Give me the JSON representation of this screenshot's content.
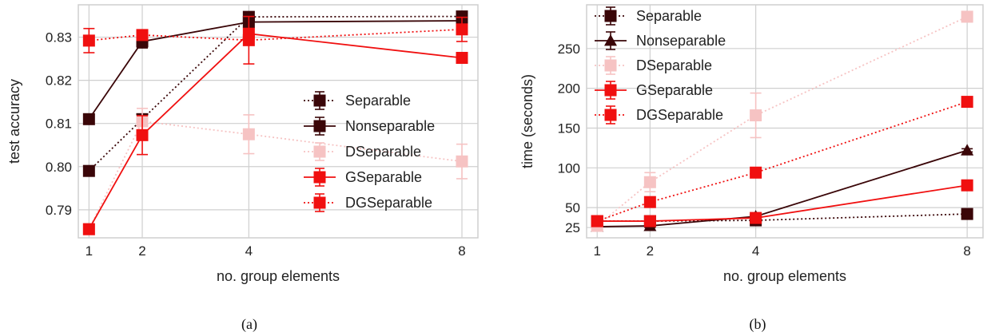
{
  "colors": {
    "Separable": "#3a0608",
    "Nonseparable": "#3a0608",
    "DSeparable": "#f6c3c3",
    "GSeparable": "#f01010",
    "DGSeparable": "#f01010",
    "grid": "#cfcfcf",
    "frame": "#cfcfcf"
  },
  "chart_data": [
    {
      "type": "line",
      "caption": "(a)",
      "xlabel": "no. group elements",
      "ylabel": "test accuracy",
      "x": [
        1,
        2,
        4,
        8
      ],
      "xticks": [
        "1",
        "2",
        "4",
        "8"
      ],
      "xlim": [
        0.8,
        8.3
      ],
      "ylim": [
        0.7835,
        0.8375
      ],
      "yticks": [
        0.79,
        0.8,
        0.81,
        0.82,
        0.83
      ],
      "ytick_labels": [
        "0.79",
        "0.80",
        "0.81",
        "0.82",
        "0.83"
      ],
      "grid": true,
      "legend_position": "lower-right",
      "legend": [
        "Separable",
        "Nonseparable",
        "DSeparable",
        "GSeparable",
        "DGSeparable"
      ],
      "series": [
        {
          "name": "Separable",
          "style": "dotted",
          "marker": "square",
          "values": [
            0.799,
            0.811,
            0.8347,
            0.8348
          ],
          "errors": [
            0.0005,
            0.001,
            0.0005,
            0.0005
          ]
        },
        {
          "name": "Nonseparable",
          "style": "solid",
          "marker": "square",
          "values": [
            0.811,
            0.829,
            0.8335,
            0.8338
          ],
          "errors": [
            0.0005,
            0.0015,
            0.0005,
            0.0008
          ]
        },
        {
          "name": "DSeparable",
          "style": "dotted",
          "marker": "square",
          "values": [
            0.7855,
            0.8105,
            0.8075,
            0.8012
          ],
          "errors": [
            0.001,
            0.003,
            0.0045,
            0.004
          ]
        },
        {
          "name": "GSeparable",
          "style": "solid",
          "marker": "square",
          "values": [
            0.7855,
            0.8073,
            0.8308,
            0.8252
          ],
          "errors": [
            0.0012,
            0.0045,
            0.0012,
            0.0008
          ]
        },
        {
          "name": "DGSeparable",
          "style": "dotted",
          "marker": "square",
          "values": [
            0.8292,
            0.8305,
            0.8293,
            0.8318
          ],
          "errors": [
            0.0028,
            0.0012,
            0.0055,
            0.0028
          ]
        }
      ]
    },
    {
      "type": "line",
      "caption": "(b)",
      "xlabel": "no. group elements",
      "ylabel": "time (seconds)",
      "x": [
        1,
        2,
        4,
        8
      ],
      "xticks": [
        "1",
        "2",
        "4",
        "8"
      ],
      "xlim": [
        0.8,
        8.3
      ],
      "ylim": [
        12,
        305
      ],
      "yticks": [
        25,
        50,
        100,
        150,
        200,
        250
      ],
      "ytick_labels": [
        "25",
        "50",
        "100",
        "150",
        "200",
        "250"
      ],
      "grid": true,
      "legend_position": "upper-left",
      "legend": [
        "Separable",
        "Nonseparable",
        "DSeparable",
        "GSeparable",
        "DGSeparable"
      ],
      "series": [
        {
          "name": "Separable",
          "style": "dotted",
          "marker": "square",
          "values": [
            33,
            33,
            34,
            42
          ],
          "errors": [
            2,
            1,
            1,
            1
          ]
        },
        {
          "name": "Nonseparable",
          "style": "solid",
          "marker": "triangle",
          "values": [
            26,
            27,
            39,
            122
          ],
          "errors": [
            3,
            2,
            2,
            2
          ]
        },
        {
          "name": "DSeparable",
          "style": "dotted",
          "marker": "square",
          "values": [
            27,
            82,
            166,
            290
          ],
          "errors": [
            3,
            12,
            28,
            3
          ]
        },
        {
          "name": "GSeparable",
          "style": "solid",
          "marker": "square",
          "values": [
            33,
            33,
            37,
            78
          ],
          "errors": [
            2,
            2,
            2,
            2
          ]
        },
        {
          "name": "DGSeparable",
          "style": "dotted",
          "marker": "square",
          "values": [
            33,
            57,
            94,
            183
          ],
          "errors": [
            2,
            3,
            2,
            2
          ]
        }
      ]
    }
  ]
}
